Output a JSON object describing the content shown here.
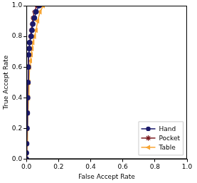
{
  "chart_data": {
    "type": "line",
    "x_label": "False Accept Rate",
    "y_label": "True Accept Rate",
    "xlim": [
      0,
      1
    ],
    "ylim": [
      0,
      1
    ],
    "xticks": [
      {
        "value": 0,
        "label": "0.0"
      },
      0.2,
      0.4,
      0.6,
      0.8,
      {
        "value": 1,
        "label": "1.0"
      }
    ],
    "yticks": [
      {
        "value": 0,
        "label": "0.0"
      },
      0.2,
      0.4,
      0.6,
      0.8,
      {
        "value": 1,
        "label": "1.0"
      }
    ],
    "grid": false,
    "legend": "lower right",
    "series": [
      {
        "name": "Hand",
        "color": "#1b1a6b",
        "marker": "circle",
        "line_style": "solid",
        "x": [
          0,
          0,
          0.002,
          0.004,
          0.006,
          0.008,
          0.01,
          0.012,
          0.014,
          0.018,
          0.02,
          0.03,
          0.035,
          0.04,
          0.05,
          0.06,
          0.08
        ],
        "values": [
          0,
          0.04,
          0.1,
          0.2,
          0.3,
          0.4,
          0.5,
          0.6,
          0.68,
          0.72,
          0.76,
          0.8,
          0.84,
          0.88,
          0.92,
          0.96,
          1.0
        ]
      },
      {
        "name": "Pocket",
        "color": "#7b1c22",
        "marker": "star",
        "line_style": "solid",
        "x": [
          0,
          0.001,
          0.002,
          0.003,
          0.005,
          0.007,
          0.009,
          0.011,
          0.013,
          0.016,
          0.02,
          0.025,
          0.03,
          0.035,
          0.04,
          0.05,
          0.065
        ],
        "values": [
          0,
          0.04,
          0.1,
          0.2,
          0.3,
          0.4,
          0.5,
          0.6,
          0.68,
          0.72,
          0.76,
          0.8,
          0.84,
          0.88,
          0.92,
          0.96,
          1.0
        ]
      },
      {
        "name": "Table",
        "color": "#f7a534",
        "marker": "triangle-left",
        "line_style": "solid",
        "x": [
          0,
          0.002,
          0.004,
          0.007,
          0.01,
          0.013,
          0.016,
          0.02,
          0.025,
          0.03,
          0.035,
          0.04,
          0.05,
          0.06,
          0.07,
          0.085,
          0.105
        ],
        "values": [
          0,
          0.04,
          0.1,
          0.2,
          0.3,
          0.4,
          0.5,
          0.6,
          0.64,
          0.68,
          0.72,
          0.76,
          0.8,
          0.84,
          0.9,
          0.96,
          1.0
        ]
      }
    ]
  }
}
